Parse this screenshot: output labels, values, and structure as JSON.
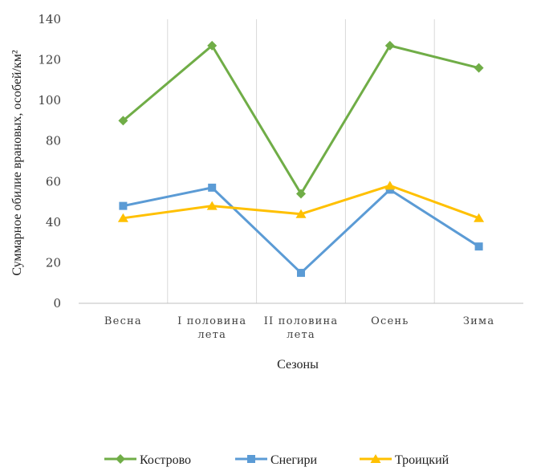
{
  "chart_data": {
    "type": "line",
    "categories": [
      [
        "Весна"
      ],
      [
        "I половина",
        "лета"
      ],
      [
        "II половина",
        "лета"
      ],
      [
        "Осень"
      ],
      [
        "Зима"
      ]
    ],
    "series": [
      {
        "name": "Кострово",
        "values": [
          90,
          127,
          54,
          127,
          116
        ],
        "color": "#70AD47",
        "marker": "diamond"
      },
      {
        "name": "Снегири",
        "values": [
          48,
          57,
          15,
          56,
          28
        ],
        "color": "#5B9BD5",
        "marker": "square"
      },
      {
        "name": "Троицкий",
        "values": [
          42,
          48,
          44,
          58,
          42
        ],
        "color": "#FFC000",
        "marker": "triangle"
      }
    ],
    "xlabel": "Сезоны",
    "ylabel": "Суммарное обилие врановых, особей/км²",
    "ylim": [
      0,
      140
    ],
    "yticks": [
      0,
      20,
      40,
      60,
      80,
      100,
      120,
      140
    ],
    "grid": "vertical",
    "legend_position": "bottom"
  }
}
